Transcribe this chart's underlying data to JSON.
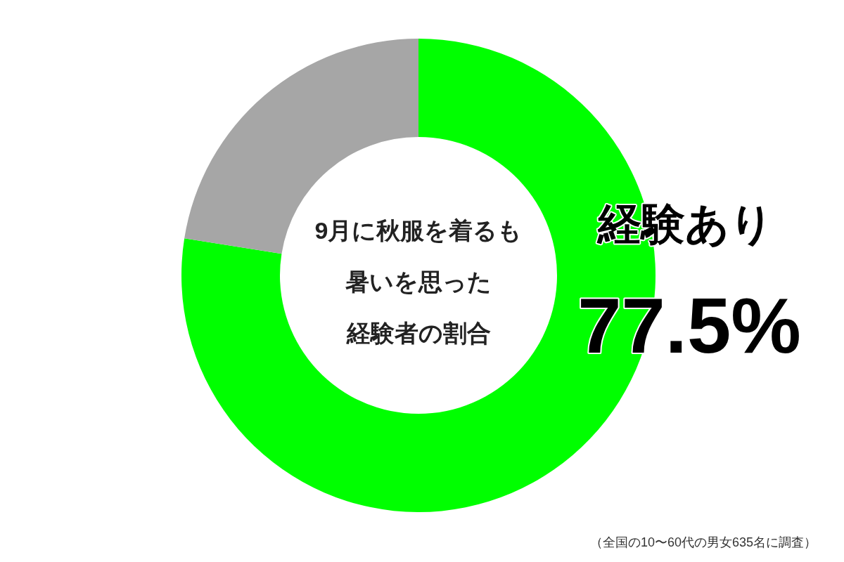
{
  "chart_data": {
    "type": "donut",
    "title": "9月に秋服を着るも暑いを思った経験者の割合",
    "categories": [
      "経験あり",
      null
    ],
    "values": [
      77.5,
      22.5
    ],
    "colors": [
      "#00ff00",
      "#a6a6a6"
    ],
    "value_labels": [
      "77.5%",
      null
    ],
    "annotations": [
      "（全国の10〜60代の男女635名に調査）"
    ]
  }
}
